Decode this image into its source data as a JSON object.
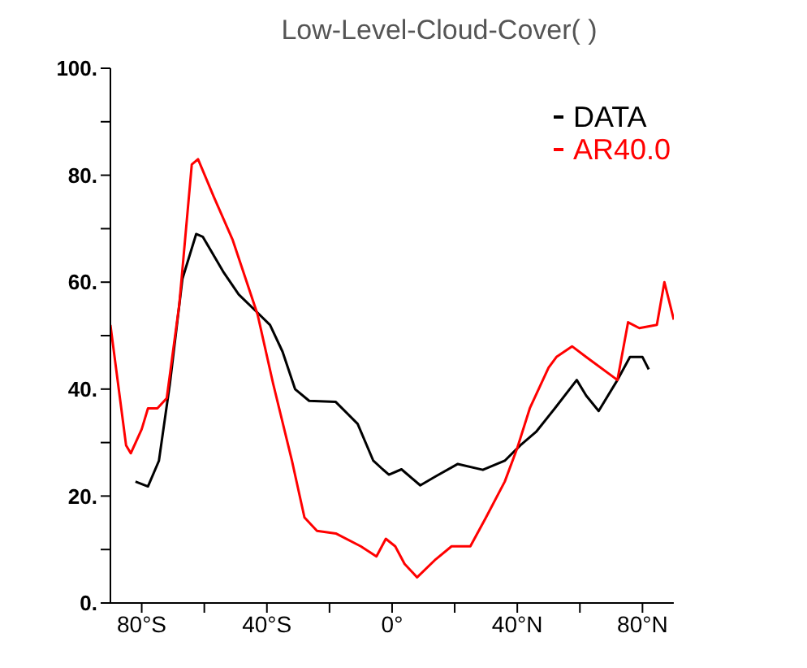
{
  "chart_data": {
    "type": "line",
    "title": "Low-Level-Cloud-Cover( )",
    "xlim": [
      -90,
      90
    ],
    "xticks": [
      {
        "value": -80,
        "label": "80°S"
      },
      {
        "value": -60,
        "label": null
      },
      {
        "value": -40,
        "label": "40°S"
      },
      {
        "value": -20,
        "label": null
      },
      {
        "value": 0,
        "label": "0°"
      },
      {
        "value": 20,
        "label": null
      },
      {
        "value": 40,
        "label": "40°N"
      },
      {
        "value": 60,
        "label": null
      },
      {
        "value": 80,
        "label": "80°N"
      }
    ],
    "ylim": [
      0,
      100
    ],
    "yticks": [
      {
        "value": 0,
        "label": "0."
      },
      {
        "value": 10,
        "label": null
      },
      {
        "value": 20,
        "label": "20."
      },
      {
        "value": 30,
        "label": null
      },
      {
        "value": 40,
        "label": "40."
      },
      {
        "value": 50,
        "label": null
      },
      {
        "value": 60,
        "label": "60."
      },
      {
        "value": 70,
        "label": null
      },
      {
        "value": 80,
        "label": "80."
      },
      {
        "value": 90,
        "label": null
      },
      {
        "value": 100,
        "label": "100."
      }
    ],
    "grid": false,
    "legend": "top right",
    "marker": "none",
    "line_style": "solid",
    "series": [
      {
        "name": "DATA",
        "color": "#000000",
        "x": [
          -82,
          -78,
          -74.5,
          -71,
          -67,
          -62.6,
          -60.5,
          -54,
          -49,
          -43,
          -39,
          -35,
          -31,
          -26.5,
          -18,
          -11,
          -6,
          -3,
          -1,
          3,
          9,
          14,
          21,
          29,
          36,
          41,
          46,
          52,
          59,
          62,
          66,
          72,
          76,
          80,
          82
        ],
        "values": [
          22.7,
          21.8,
          26.6,
          41,
          60.6,
          69,
          68.5,
          62,
          57.7,
          54.3,
          52,
          47,
          40,
          37.8,
          37.6,
          33.5,
          26.6,
          25,
          24,
          25,
          22,
          23.7,
          26,
          24.9,
          26.6,
          29.5,
          32,
          36.4,
          41.7,
          38.8,
          35.9,
          41.7,
          46,
          46,
          43.7
        ]
      },
      {
        "name": "AR40.0",
        "color": "#ff0000",
        "x": [
          -90,
          -85,
          -83.5,
          -80,
          -78,
          -75,
          -72,
          -68,
          -64,
          -62,
          -57,
          -51,
          -43,
          -38,
          -32,
          -28,
          -24,
          -18,
          -10,
          -5,
          -2,
          1,
          4,
          8,
          14,
          19,
          25,
          30,
          36,
          40,
          44,
          50,
          52.5,
          57.5,
          62,
          72,
          75.4,
          79,
          84.6,
          87,
          90
        ],
        "values": [
          52,
          29.5,
          28,
          32.5,
          36.4,
          36.4,
          38.3,
          55.8,
          82,
          83,
          76,
          68,
          54,
          41,
          26.6,
          16,
          13.5,
          13,
          10.6,
          8.7,
          12,
          10.6,
          7.3,
          4.8,
          8.2,
          10.6,
          10.6,
          16,
          22.7,
          29,
          36.4,
          44,
          46,
          48,
          46,
          41.7,
          52.5,
          51.4,
          52,
          60,
          53
        ]
      }
    ]
  }
}
